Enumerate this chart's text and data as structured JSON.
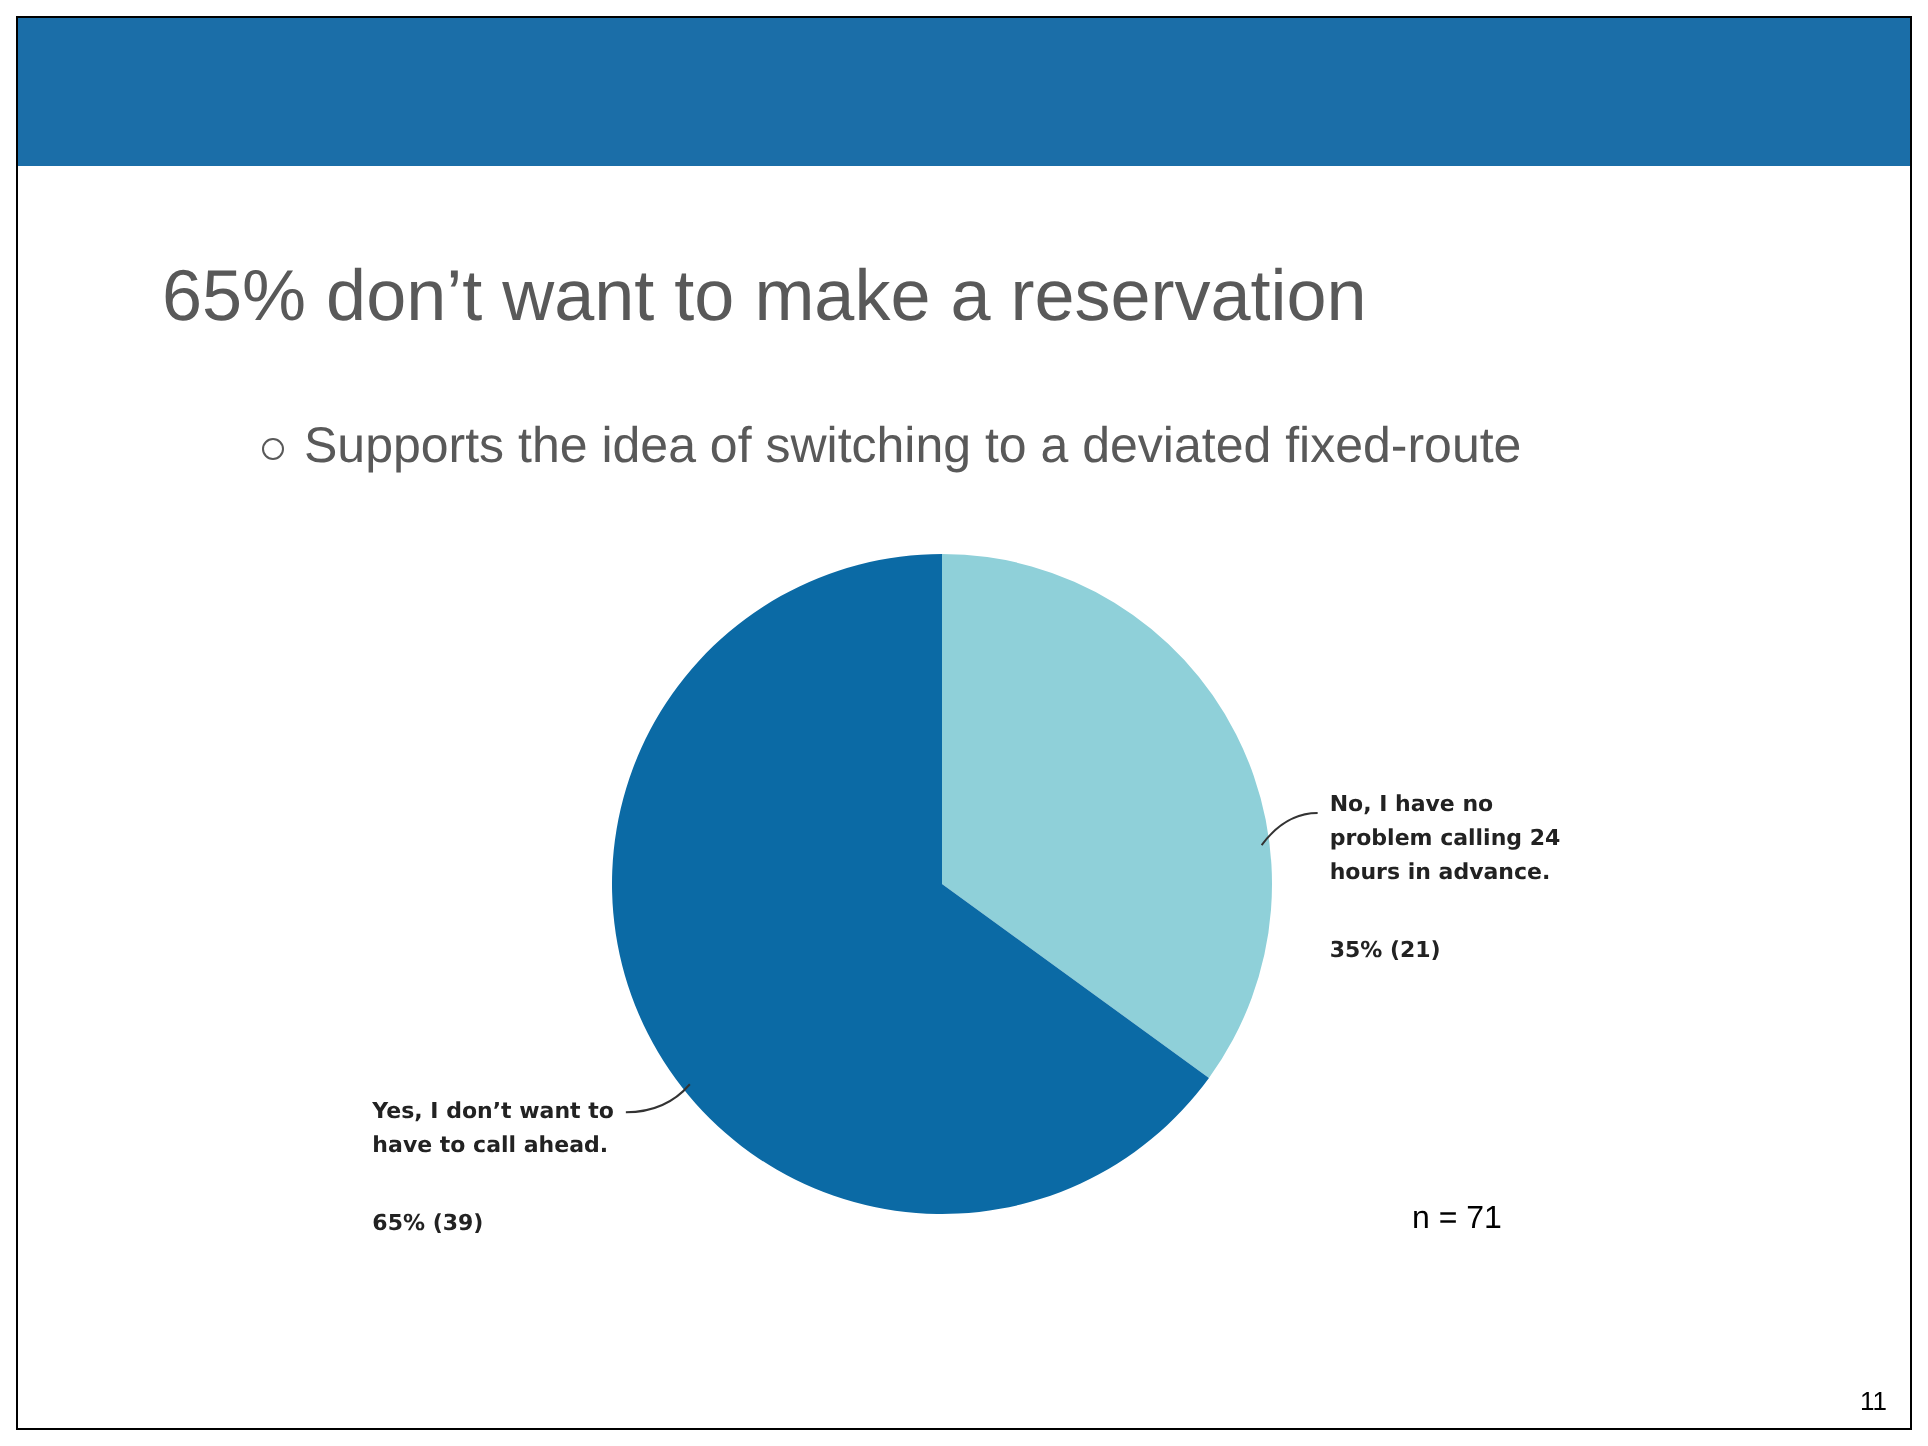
{
  "chart_data": {
    "type": "pie",
    "title": "65% don’t want to make a reservation",
    "subtitle": "Supports the idea of switching to a deviated fixed-route",
    "categories": [
      "No, I have no problem calling 24 hours in advance.",
      "Yes, I don’t want to have to call ahead."
    ],
    "values": [
      35,
      65
    ],
    "value_labels": [
      "35% (21)",
      "65% (39)"
    ],
    "colors": [
      "#8fd0d9",
      "#0b6aa5"
    ],
    "legend": false,
    "annotations": [
      "n = 71",
      "11"
    ]
  }
}
